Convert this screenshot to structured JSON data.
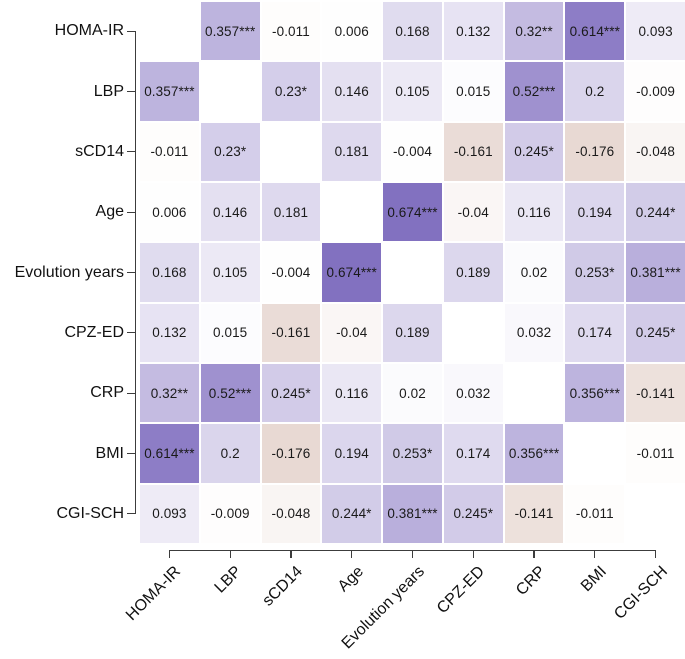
{
  "figure": {
    "kind": "correlation-matrix-heatmap",
    "background": "#ffffff"
  },
  "chart_data": {
    "type": "heatmap",
    "title": "",
    "xlabel": "",
    "ylabel": "",
    "categories": [
      "HOMA-IR",
      "LBP",
      "sCD14",
      "Age",
      "Evolution years",
      "CPZ-ED",
      "CRP",
      "BMI",
      "CGI-SCH"
    ],
    "value_range": [
      -1,
      1
    ],
    "diagonal": "blank",
    "legend": "none",
    "grid_gap_color": "#ffffff",
    "colorscale": {
      "negative_end": "#7C2705",
      "zero": "#FFFFFF",
      "positive_end": "#462CA2"
    },
    "matrix_display": [
      [
        "",
        "0.357***",
        "-0.011",
        "0.006",
        "0.168",
        "0.132",
        "0.32**",
        "0.614***",
        "0.093"
      ],
      [
        "0.357***",
        "",
        "0.23*",
        "0.146",
        "0.105",
        "0.015",
        "0.52***",
        "0.2",
        "-0.009"
      ],
      [
        "-0.011",
        "0.23*",
        "",
        "0.181",
        "-0.004",
        "-0.161",
        "0.245*",
        "-0.176",
        "-0.048"
      ],
      [
        "0.006",
        "0.146",
        "0.181",
        "",
        "0.674***",
        "-0.04",
        "0.116",
        "0.194",
        "0.244*"
      ],
      [
        "0.168",
        "0.105",
        "-0.004",
        "0.674***",
        "",
        "0.189",
        "0.02",
        "0.253*",
        "0.381***"
      ],
      [
        "0.132",
        "0.015",
        "-0.161",
        "-0.04",
        "0.189",
        "",
        "0.032",
        "0.174",
        "0.245*"
      ],
      [
        "0.32**",
        "0.52***",
        "0.245*",
        "0.116",
        "0.02",
        "0.032",
        "",
        "0.356***",
        "-0.141"
      ],
      [
        "0.614***",
        "0.2",
        "-0.176",
        "0.194",
        "0.253*",
        "0.174",
        "0.356***",
        "",
        "-0.011"
      ],
      [
        "0.093",
        "-0.009",
        "-0.048",
        "0.244*",
        "0.381***",
        "0.245*",
        "-0.141",
        "-0.011",
        ""
      ]
    ],
    "matrix_values": [
      [
        null,
        0.357,
        -0.011,
        0.006,
        0.168,
        0.132,
        0.32,
        0.614,
        0.093
      ],
      [
        0.357,
        null,
        0.23,
        0.146,
        0.105,
        0.015,
        0.52,
        0.2,
        -0.009
      ],
      [
        -0.011,
        0.23,
        null,
        0.181,
        -0.004,
        -0.161,
        0.245,
        -0.176,
        -0.048
      ],
      [
        0.006,
        0.146,
        0.181,
        null,
        0.674,
        -0.04,
        0.116,
        0.194,
        0.244
      ],
      [
        0.168,
        0.105,
        -0.004,
        0.674,
        null,
        0.189,
        0.02,
        0.253,
        0.381
      ],
      [
        0.132,
        0.015,
        -0.161,
        -0.04,
        0.189,
        null,
        0.032,
        0.174,
        0.245
      ],
      [
        0.32,
        0.52,
        0.245,
        0.116,
        0.02,
        0.032,
        null,
        0.356,
        -0.141
      ],
      [
        0.614,
        0.2,
        -0.176,
        0.194,
        0.253,
        0.174,
        0.356,
        null,
        -0.011
      ],
      [
        0.093,
        -0.009,
        -0.048,
        0.244,
        0.381,
        0.245,
        -0.141,
        -0.011,
        null
      ]
    ]
  }
}
